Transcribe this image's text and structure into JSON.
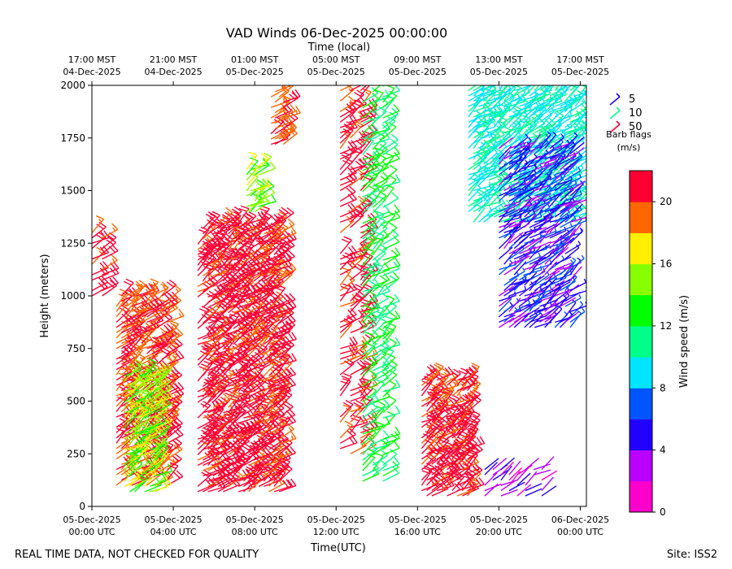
{
  "chart_data": {
    "type": "wind-barb",
    "title": "VAD Winds 06-Dec-2025 00:00:00",
    "xlabel": "Time(UTC)",
    "ylabel": "Height (meters)",
    "top_axis_label": "Time (local)",
    "ylim": [
      0,
      2000
    ],
    "xlim_hours": [
      0,
      24.3
    ],
    "y_ticks": [
      0,
      250,
      500,
      750,
      1000,
      1250,
      1500,
      1750,
      2000
    ],
    "bottom_ticks": [
      {
        "hour": 0,
        "line1": "05-Dec-2025",
        "line2": "00:00 UTC"
      },
      {
        "hour": 4,
        "line1": "05-Dec-2025",
        "line2": "04:00 UTC"
      },
      {
        "hour": 8,
        "line1": "05-Dec-2025",
        "line2": "08:00 UTC"
      },
      {
        "hour": 12,
        "line1": "05-Dec-2025",
        "line2": "12:00 UTC"
      },
      {
        "hour": 16,
        "line1": "05-Dec-2025",
        "line2": "16:00 UTC"
      },
      {
        "hour": 20,
        "line1": "05-Dec-2025",
        "line2": "20:00 UTC"
      },
      {
        "hour": 24,
        "line1": "06-Dec-2025",
        "line2": "00:00 UTC"
      }
    ],
    "top_ticks": [
      {
        "hour": 0,
        "line1": "17:00 MST",
        "line2": "04-Dec-2025"
      },
      {
        "hour": 4,
        "line1": "21:00 MST",
        "line2": "04-Dec-2025"
      },
      {
        "hour": 8,
        "line1": "01:00 MST",
        "line2": "05-Dec-2025"
      },
      {
        "hour": 12,
        "line1": "05:00 MST",
        "line2": "05-Dec-2025"
      },
      {
        "hour": 16,
        "line1": "09:00 MST",
        "line2": "05-Dec-2025"
      },
      {
        "hour": 20,
        "line1": "13:00 MST",
        "line2": "05-Dec-2025"
      },
      {
        "hour": 24,
        "line1": "17:00 MST",
        "line2": "05-Dec-2025"
      }
    ],
    "colorbar": {
      "label": "Wind speed (m/s)",
      "min": 0,
      "max": 22,
      "step": 2,
      "ticks": [
        0,
        4,
        8,
        12,
        16,
        20
      ],
      "colors": [
        "#ff00cc",
        "#bb00ff",
        "#2200ff",
        "#0055ff",
        "#00e5ff",
        "#00ff88",
        "#00ff00",
        "#88ff00",
        "#ffee00",
        "#ff6600",
        "#ff0033"
      ]
    },
    "legend": {
      "position": "right",
      "title_line1": "Barb flags",
      "title_line2": "(m/s)",
      "items": [
        {
          "label": "5",
          "color": "#2200ff"
        },
        {
          "label": "10",
          "color": "#00ff88"
        },
        {
          "label": "50",
          "color": "#ff0033"
        }
      ]
    },
    "barb_groups": [
      {
        "name": "early-strong",
        "hours": [
          0.0,
          0.6
        ],
        "h_range": [
          1000,
          1300
        ],
        "speed": 21,
        "spacing": 0.5
      },
      {
        "name": "evening-strong",
        "hours": [
          1.2,
          3.9
        ],
        "h_range": [
          100,
          1000
        ],
        "speed": 20,
        "spacing": 0.25
      },
      {
        "name": "evening-weaker",
        "hours": [
          1.6,
          3.3
        ],
        "h_range": [
          70,
          620
        ],
        "speed": 15,
        "spacing": 0.25
      },
      {
        "name": "night-strong",
        "hours": [
          5.2,
          9.2
        ],
        "h_range": [
          70,
          1350
        ],
        "speed": 21,
        "spacing": 0.25
      },
      {
        "name": "night-green",
        "hours": [
          7.6,
          8.2
        ],
        "h_range": [
          1400,
          1600
        ],
        "speed": 15,
        "spacing": 0.2
      },
      {
        "name": "night-high",
        "hours": [
          8.8,
          9.5
        ],
        "h_range": [
          1720,
          1980
        ],
        "speed": 20,
        "spacing": 0.2
      },
      {
        "name": "morning-strong",
        "hours": [
          12.2,
          13.3
        ],
        "h_range": [
          250,
          2000
        ],
        "speed": 21,
        "spacing": 0.5
      },
      {
        "name": "morning-mixed",
        "hours": [
          13.3,
          14.3
        ],
        "h_range": [
          120,
          2000
        ],
        "speed": 12,
        "spacing": 0.5
      },
      {
        "name": "late-morning-low",
        "hours": [
          16.2,
          18.5
        ],
        "h_range": [
          50,
          600
        ],
        "speed": 21,
        "spacing": 0.25
      },
      {
        "name": "afternoon-high",
        "hours": [
          18.5,
          23.8
        ],
        "h_range": [
          1350,
          2000
        ],
        "speed": 10,
        "spacing": 0.25
      },
      {
        "name": "afternoon-mid",
        "hours": [
          20.0,
          23.5
        ],
        "h_range": [
          850,
          1700
        ],
        "speed": 5,
        "spacing": 0.25
      },
      {
        "name": "afternoon-low",
        "hours": [
          19.3,
          22.3
        ],
        "h_range": [
          50,
          190
        ],
        "speed": 3,
        "spacing": 0.4
      }
    ],
    "footer_left": "REAL TIME DATA, NOT CHECKED FOR QUALITY",
    "footer_right": "Site: ISS2"
  }
}
